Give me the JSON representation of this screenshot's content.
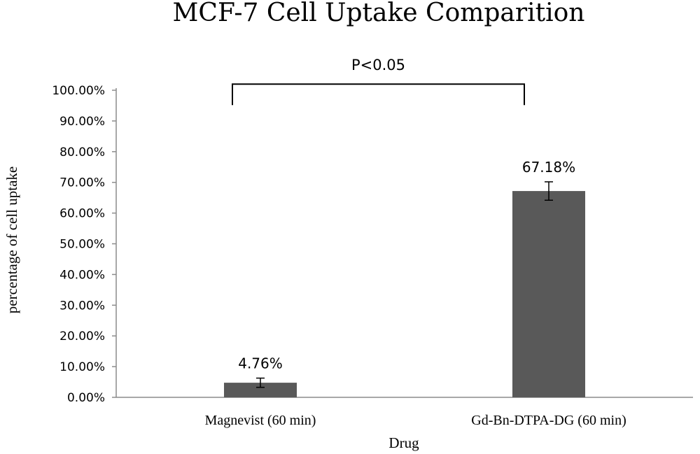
{
  "chart_data": {
    "type": "bar",
    "title": "MCF-7 Cell Uptake Comparition",
    "xlabel": "Drug",
    "ylabel": "percentage of cell uptake",
    "categories": [
      "Magnevist  (60 min)",
      "Gd-Bn-DTPA-DG  (60 min)"
    ],
    "values": [
      4.76,
      67.18
    ],
    "errors": [
      1.5,
      3.0
    ],
    "data_labels": [
      "4.76%",
      "67.18%"
    ],
    "ylim": [
      0,
      100
    ],
    "yticks": [
      0,
      10,
      20,
      30,
      40,
      50,
      60,
      70,
      80,
      90,
      100
    ],
    "ytick_labels": [
      "0.00%",
      "10.00%",
      "20.00%",
      "30.00%",
      "40.00%",
      "50.00%",
      "60.00%",
      "70.00%",
      "80.00%",
      "90.00%",
      "100.00%"
    ],
    "grid": false,
    "bar_color": "#595959",
    "annotation": {
      "text": "P<0.05",
      "between": [
        0,
        1
      ],
      "level": 102
    }
  }
}
